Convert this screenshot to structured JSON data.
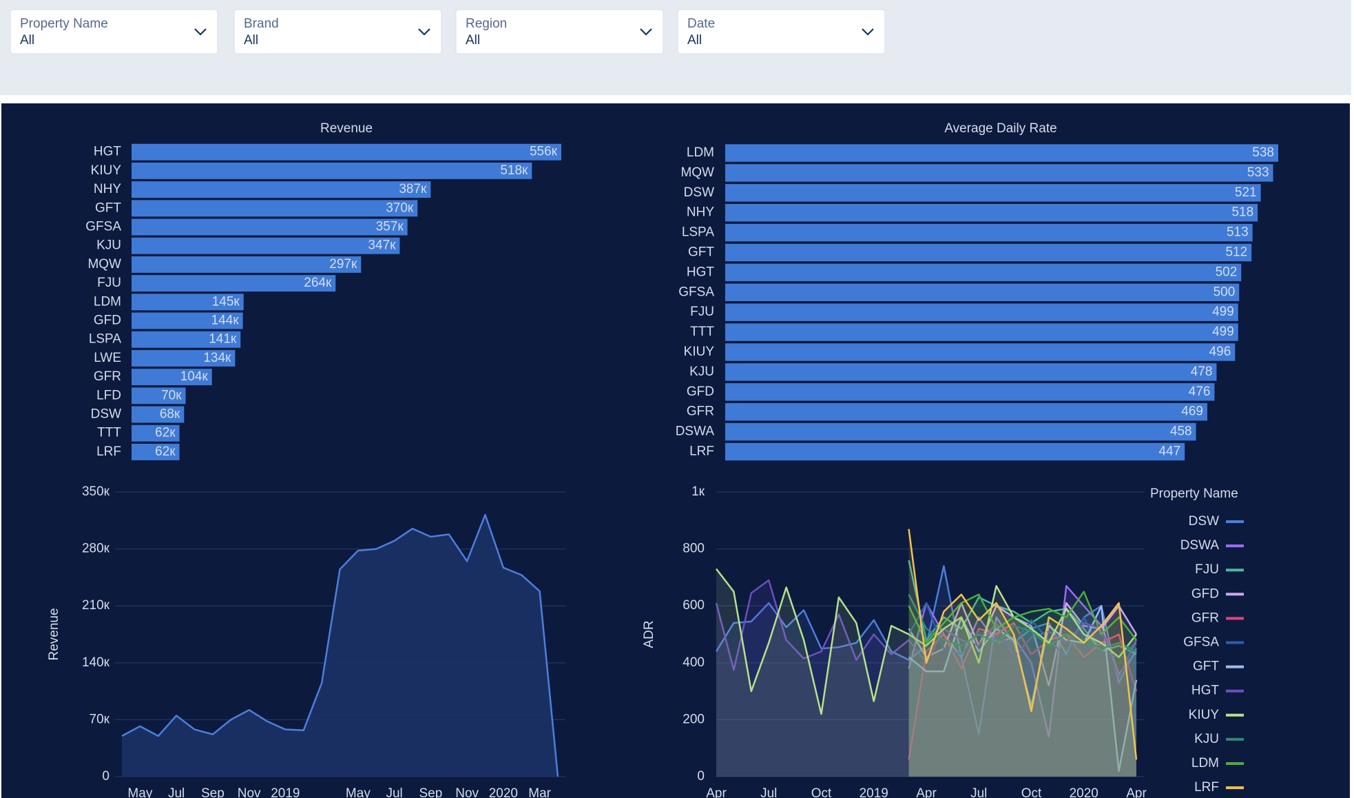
{
  "filters": [
    {
      "label": "Property Name",
      "value": "All"
    },
    {
      "label": "Brand",
      "value": "All"
    },
    {
      "label": "Region",
      "value": "All"
    },
    {
      "label": "Date",
      "value": "All"
    }
  ],
  "chart_data": [
    {
      "type": "bar",
      "orientation": "horizontal",
      "title": "Revenue",
      "color": "#3f7bd6",
      "categories": [
        "HGT",
        "KIUY",
        "NHY",
        "GFT",
        "GFSA",
        "KJU",
        "MQW",
        "FJU",
        "LDM",
        "GFD",
        "LSPA",
        "LWE",
        "GFR",
        "LFD",
        "DSW",
        "TTT",
        "LRF"
      ],
      "values": [
        556000,
        518000,
        387000,
        370000,
        357000,
        347000,
        297000,
        264000,
        145000,
        144000,
        141000,
        134000,
        104000,
        70000,
        68000,
        62000,
        62000
      ],
      "value_labels": [
        "556к",
        "518к",
        "387к",
        "370к",
        "357к",
        "347к",
        "297к",
        "264к",
        "145к",
        "144к",
        "141к",
        "134к",
        "104к",
        "70к",
        "68к",
        "62к",
        "62к"
      ]
    },
    {
      "type": "bar",
      "orientation": "horizontal",
      "title": "Average Daily Rate",
      "color": "#3f7bd6",
      "categories": [
        "LDM",
        "MQW",
        "DSW",
        "NHY",
        "LSPA",
        "GFT",
        "HGT",
        "GFSA",
        "FJU",
        "TTT",
        "KIUY",
        "KJU",
        "GFD",
        "GFR",
        "DSWA",
        "LRF"
      ],
      "values": [
        538,
        533,
        521,
        518,
        513,
        512,
        502,
        500,
        499,
        499,
        496,
        478,
        476,
        469,
        458,
        447
      ]
    },
    {
      "type": "area",
      "y_label": "Revenue",
      "color": "#4c7fdc",
      "grid": true,
      "x": [
        "2018-04",
        "2018-05",
        "2018-06",
        "2018-07",
        "2018-08",
        "2018-09",
        "2018-10",
        "2018-11",
        "2018-12",
        "2019-01",
        "2019-02",
        "2019-03",
        "2019-04",
        "2019-05",
        "2019-06",
        "2019-07",
        "2019-08",
        "2019-09",
        "2019-10",
        "2019-11",
        "2019-12",
        "2020-01",
        "2020-02",
        "2020-03",
        "2020-04"
      ],
      "values": [
        50000,
        62000,
        50000,
        75000,
        58000,
        52000,
        70000,
        82000,
        68000,
        58000,
        57000,
        115000,
        255000,
        278000,
        280000,
        290000,
        305000,
        295000,
        298000,
        265000,
        322000,
        257000,
        248000,
        228000,
        0
      ],
      "xlim": [
        "2018-04",
        "2020-04"
      ],
      "xticks": [
        {
          "value": "2018-05",
          "label": "May"
        },
        {
          "value": "2018-07",
          "label": "Jul"
        },
        {
          "value": "2018-09",
          "label": "Sep"
        },
        {
          "value": "2018-11",
          "label": "Nov"
        },
        {
          "value": "2019-01",
          "label": "2019"
        },
        {
          "value": "2019-05",
          "label": "May"
        },
        {
          "value": "2019-07",
          "label": "Jul"
        },
        {
          "value": "2019-09",
          "label": "Sep"
        },
        {
          "value": "2019-11",
          "label": "Nov"
        },
        {
          "value": "2020-01",
          "label": "2020"
        },
        {
          "value": "2020-03",
          "label": "Mar"
        }
      ],
      "ylim": [
        0,
        350000
      ],
      "yticks": [
        0,
        {
          "value": 70000,
          "label": "70к"
        },
        {
          "value": 140000,
          "label": "140к"
        },
        {
          "value": 210000,
          "label": "210к"
        },
        {
          "value": 280000,
          "label": "280к"
        },
        {
          "value": 350000,
          "label": "350к"
        }
      ]
    },
    {
      "type": "line",
      "fill_under": true,
      "y_label": "ADR",
      "legend_title": "Property Name",
      "legend": "right",
      "grid": true,
      "x": [
        "2018-04",
        "2018-05",
        "2018-06",
        "2018-07",
        "2018-08",
        "2018-09",
        "2018-10",
        "2018-11",
        "2018-12",
        "2019-01",
        "2019-02",
        "2019-03",
        "2019-04",
        "2019-05",
        "2019-06",
        "2019-07",
        "2019-08",
        "2019-09",
        "2019-10",
        "2019-11",
        "2019-12",
        "2020-01",
        "2020-02",
        "2020-03",
        "2020-04"
      ],
      "xlim": [
        "2018-04",
        "2020-04"
      ],
      "xticks": [
        {
          "value": "2018-04",
          "label": "Apr"
        },
        {
          "value": "2018-07",
          "label": "Jul"
        },
        {
          "value": "2018-10",
          "label": "Oct"
        },
        {
          "value": "2019-01",
          "label": "2019"
        },
        {
          "value": "2019-04",
          "label": "Apr"
        },
        {
          "value": "2019-07",
          "label": "Jul"
        },
        {
          "value": "2019-10",
          "label": "Oct"
        },
        {
          "value": "2020-01",
          "label": "2020"
        },
        {
          "value": "2020-04",
          "label": "Apr"
        }
      ],
      "ylim": [
        0,
        1000
      ],
      "yticks": [
        0,
        200,
        400,
        600,
        800,
        {
          "value": 1000,
          "label": "1к"
        }
      ],
      "series": [
        {
          "name": "DSW",
          "color": "#4c7fdc",
          "values": [
            440,
            540,
            545,
            610,
            525,
            585,
            450,
            455,
            470,
            550,
            440,
            410,
            460,
            740,
            420,
            150,
            560,
            470,
            520,
            540,
            430,
            560,
            600,
            330,
            450
          ]
        },
        {
          "name": "DSWA",
          "color": "#9b6cf5",
          "values": [
            null,
            null,
            null,
            null,
            null,
            null,
            null,
            null,
            null,
            null,
            null,
            380,
            610,
            500,
            420,
            560,
            470,
            490,
            400,
            140,
            670,
            600,
            530,
            360,
            440
          ]
        },
        {
          "name": "FJU",
          "color": "#4fb89a",
          "values": [
            null,
            null,
            null,
            null,
            null,
            null,
            null,
            null,
            null,
            null,
            null,
            760,
            480,
            560,
            520,
            630,
            600,
            580,
            540,
            580,
            590,
            520,
            440,
            460,
            430
          ]
        },
        {
          "name": "GFD",
          "color": "#c9a8f0",
          "values": [
            null,
            null,
            null,
            null,
            null,
            null,
            null,
            null,
            null,
            null,
            null,
            520,
            420,
            450,
            610,
            460,
            600,
            560,
            530,
            320,
            610,
            530,
            520,
            600,
            500
          ]
        },
        {
          "name": "GFR",
          "color": "#e0457b",
          "values": [
            null,
            null,
            null,
            null,
            null,
            null,
            null,
            null,
            null,
            null,
            null,
            60,
            440,
            500,
            380,
            520,
            500,
            540,
            430,
            480,
            500,
            420,
            470,
            500,
            300
          ]
        },
        {
          "name": "GFSA",
          "color": "#2c5ea8",
          "values": [
            null,
            null,
            null,
            null,
            null,
            null,
            null,
            null,
            null,
            null,
            null,
            500,
            610,
            450,
            430,
            510,
            480,
            470,
            550,
            480,
            420,
            560,
            440,
            420,
            470
          ]
        },
        {
          "name": "GFT",
          "color": "#9fbde8",
          "values": [
            null,
            null,
            null,
            null,
            null,
            null,
            null,
            null,
            null,
            null,
            null,
            420,
            370,
            370,
            560,
            440,
            520,
            480,
            250,
            530,
            480,
            470,
            600,
            20,
            340
          ]
        },
        {
          "name": "HGT",
          "color": "#6b4fbf",
          "values": [
            610,
            375,
            645,
            690,
            480,
            415,
            440,
            570,
            410,
            500,
            430,
            480,
            400,
            520,
            480,
            460,
            540,
            420,
            490,
            510,
            470,
            540,
            520,
            350,
            480
          ]
        },
        {
          "name": "KIUY",
          "color": "#b6e388",
          "values": [
            730,
            650,
            300,
            470,
            665,
            480,
            220,
            630,
            540,
            265,
            530,
            500,
            460,
            520,
            560,
            400,
            670,
            560,
            520,
            470,
            590,
            500,
            470,
            420,
            500
          ]
        },
        {
          "name": "KJU",
          "color": "#2e8b74",
          "values": [
            null,
            null,
            null,
            null,
            null,
            null,
            null,
            null,
            null,
            null,
            null,
            640,
            520,
            480,
            460,
            500,
            470,
            530,
            510,
            460,
            500,
            480,
            450,
            470,
            440
          ]
        },
        {
          "name": "LDM",
          "color": "#4cae3a",
          "values": [
            null,
            null,
            null,
            null,
            null,
            null,
            null,
            null,
            null,
            null,
            null,
            600,
            470,
            540,
            610,
            640,
            520,
            560,
            580,
            590,
            560,
            650,
            500,
            560,
            480
          ]
        },
        {
          "name": "LRF",
          "color": "#f3c24a",
          "values": [
            null,
            null,
            null,
            null,
            null,
            null,
            null,
            null,
            null,
            null,
            null,
            870,
            400,
            580,
            640,
            550,
            610,
            500,
            230,
            560,
            520,
            470,
            530,
            610,
            60
          ]
        }
      ]
    }
  ]
}
